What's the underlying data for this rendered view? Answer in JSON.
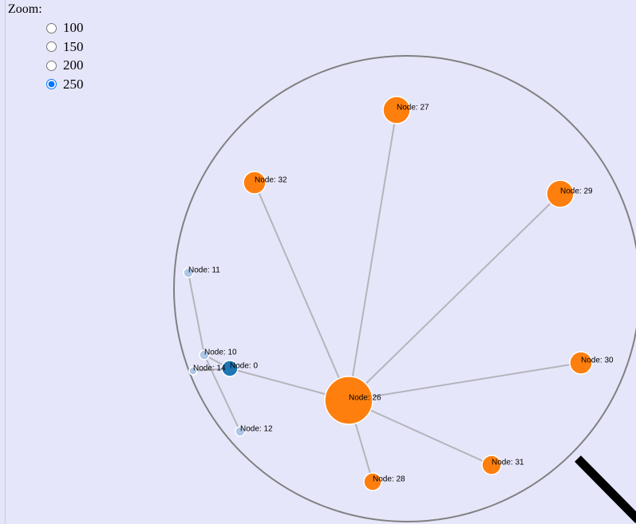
{
  "zoom": {
    "label": "Zoom:",
    "options": [
      {
        "label": "100",
        "checked": false
      },
      {
        "label": "150",
        "checked": false
      },
      {
        "label": "200",
        "checked": false
      },
      {
        "label": "250",
        "checked": true
      }
    ]
  },
  "nodes": [
    {
      "label": "Node: 27"
    },
    {
      "label": "Node: 32"
    },
    {
      "label": "Node: 29"
    },
    {
      "label": "Node: 11"
    },
    {
      "label": "Node: 10"
    },
    {
      "label": "Node: 14"
    },
    {
      "label": "Node: 0"
    },
    {
      "label": "Node: 12"
    },
    {
      "label": "Node: 26"
    },
    {
      "label": "Node: 30"
    },
    {
      "label": "Node: 31"
    },
    {
      "label": "Node: 28"
    }
  ]
}
